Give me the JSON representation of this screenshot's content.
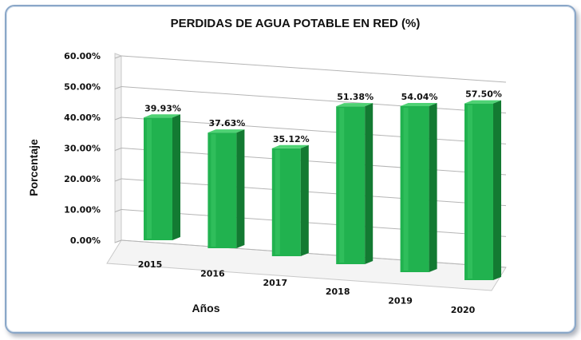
{
  "chart_data": {
    "type": "bar",
    "title": "PERDIDAS DE AGUA POTABLE EN RED (%)",
    "xlabel": "Años",
    "ylabel": "Porcentaje",
    "categories": [
      "2015",
      "2016",
      "2017",
      "2018",
      "2019",
      "2020"
    ],
    "values": [
      39.93,
      37.63,
      35.12,
      51.38,
      54.04,
      57.5
    ],
    "value_labels": [
      "39.93%",
      "37.63%",
      "35.12%",
      "51.38%",
      "54.04%",
      "57.50%"
    ],
    "y_ticks": [
      "0.00%",
      "10.00%",
      "20.00%",
      "30.00%",
      "40.00%",
      "50.00%",
      "60.00%"
    ],
    "ylim": [
      0,
      60
    ],
    "grid": true,
    "style": "3d-column",
    "bar_color": "#21b24f"
  }
}
